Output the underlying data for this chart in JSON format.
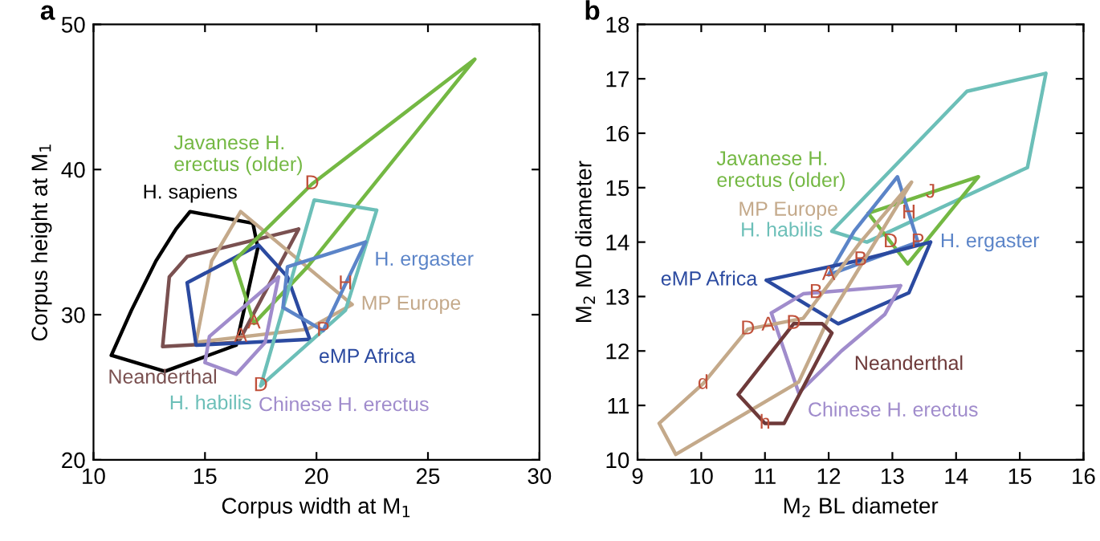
{
  "chart_data": [
    {
      "type": "line",
      "title": "a",
      "xlabel": "Corpus width at M$_{1}$",
      "ylabel": "Corpus height at M$_{1}$",
      "xlim": [
        10,
        30
      ],
      "ylim": [
        20,
        50
      ],
      "xticks": [
        10,
        15,
        20,
        25,
        30
      ],
      "yticks": [
        20,
        30,
        40,
        50
      ],
      "grid": false,
      "legend": false,
      "marker": "none",
      "line_style": "solid",
      "series": [
        {
          "name": "H. sapiens",
          "color": "#000000",
          "x": [
            10.8,
            11.7,
            12.8,
            13.7,
            14.33,
            17.15,
            17.37,
            null,
            10.8,
            13.2,
            16.4,
            17.37
          ],
          "values": [
            27.2,
            30.3,
            33.7,
            35.9,
            37.1,
            36.3,
            34.6,
            null,
            27.2,
            26.1,
            27.9,
            34.6
          ]
        },
        {
          "name": "Neanderthal",
          "color": "#7a5050",
          "x": [
            13.1,
            13.4,
            14.2,
            19.2,
            null,
            13.1,
            16.5,
            19.2
          ],
          "values": [
            27.8,
            32.6,
            34.0,
            35.9,
            null,
            27.8,
            28.1,
            35.9
          ]
        },
        {
          "name": "MP Europe",
          "color": "#c4a98a",
          "x": [
            14.6,
            15.3,
            16.6,
            21.6,
            null,
            14.6,
            19.6,
            21.6
          ],
          "values": [
            28.1,
            33.7,
            37.1,
            30.7,
            null,
            28.1,
            29.0,
            30.7
          ]
        },
        {
          "name": "eMP Africa",
          "color": "#2b4aa0",
          "x": [
            14.2,
            17.4,
            18.7,
            19.7,
            null,
            14.2,
            14.6,
            19.7
          ],
          "values": [
            32.2,
            34.8,
            32.6,
            28.3,
            null,
            32.2,
            27.9,
            28.3
          ]
        },
        {
          "name": "Javanese H. erectus (older)",
          "color": "#74b843",
          "x": [
            16.3,
            19.8,
            27.1,
            null,
            16.3,
            17.2,
            19.6,
            27.1
          ],
          "values": [
            33.7,
            39.0,
            47.6,
            null,
            33.7,
            29.4,
            33.3,
            47.6
          ]
        },
        {
          "name": "H. habilis",
          "color": "#6cbfb8",
          "x": [
            17.5,
            19.9,
            22.7,
            null,
            17.5,
            21.3,
            22.7
          ],
          "values": [
            25.1,
            37.9,
            37.2,
            null,
            25.1,
            30.3,
            37.2
          ]
        },
        {
          "name": "H. ergaster",
          "color": "#5b84c8",
          "x": [
            18.5,
            18.7,
            22.2,
            null,
            18.5,
            20.3,
            22.2
          ],
          "values": [
            30.5,
            33.3,
            35.0,
            null,
            30.5,
            28.9,
            35.0
          ]
        },
        {
          "name": "Chinese H. erectus",
          "color": "#a08ccc",
          "x": [
            15.0,
            15.2,
            18.3,
            null,
            15.0,
            16.4,
            17.7,
            18.3
          ],
          "values": [
            26.7,
            28.5,
            32.6,
            null,
            26.7,
            25.9,
            28.1,
            32.6
          ]
        }
      ],
      "annotations": [
        {
          "text": "D",
          "x": 19.8,
          "y": 39.0
        },
        {
          "text": "D",
          "x": 17.5,
          "y": 25.1
        },
        {
          "text": "H",
          "x": 21.3,
          "y": 32.1
        },
        {
          "text": "P",
          "x": 20.3,
          "y": 28.9
        },
        {
          "text": "A",
          "x": 17.2,
          "y": 29.4
        },
        {
          "text": "A",
          "x": 16.6,
          "y": 28.5
        }
      ]
    },
    {
      "type": "line",
      "title": "b",
      "xlabel": "M$_{2}$ BL diameter",
      "ylabel": "M$_{2}$ MD diameter",
      "xlim": [
        9,
        16
      ],
      "ylim": [
        10,
        18
      ],
      "xticks": [
        9,
        10,
        11,
        12,
        13,
        14,
        15,
        16
      ],
      "yticks": [
        10,
        11,
        12,
        13,
        14,
        15,
        16,
        17,
        18
      ],
      "grid": false,
      "legend": false,
      "marker": "none",
      "line_style": "solid",
      "series": [
        {
          "name": "H. habilis",
          "color": "#6cbfb8",
          "x": [
            12.05,
            14.17,
            15.41,
            null,
            12.05,
            12.6,
            15.12,
            15.41
          ],
          "values": [
            14.2,
            16.77,
            17.1,
            null,
            14.2,
            14.0,
            15.37,
            17.1
          ]
        },
        {
          "name": "Javanese H. erectus (older)",
          "color": "#74b843",
          "x": [
            12.62,
            14.35,
            null,
            12.62,
            13.24,
            14.35
          ],
          "values": [
            14.53,
            15.2,
            null,
            14.53,
            13.6,
            15.2
          ]
        },
        {
          "name": "H. ergaster",
          "color": "#5b84c8",
          "x": [
            12.0,
            12.4,
            13.08,
            13.4,
            null,
            12.0,
            13.4
          ],
          "values": [
            13.4,
            14.2,
            15.2,
            14.0,
            null,
            13.4,
            14.0
          ]
        },
        {
          "name": "eMP Africa",
          "color": "#2b4aa0",
          "x": [
            11.02,
            12.5,
            13.6,
            null,
            11.02,
            12.15,
            13.26,
            13.6
          ],
          "values": [
            13.3,
            13.67,
            14.0,
            null,
            13.3,
            12.5,
            13.07,
            14.0
          ]
        },
        {
          "name": "Chinese H. erectus",
          "color": "#a08ccc",
          "x": [
            11.1,
            11.6,
            13.13,
            null,
            11.1,
            11.53,
            12.2,
            12.88,
            13.13
          ],
          "values": [
            12.7,
            13.05,
            13.2,
            null,
            12.7,
            11.23,
            12.0,
            12.67,
            13.2
          ]
        },
        {
          "name": "MP Europe",
          "color": "#c4a98a",
          "x": [
            9.34,
            10.03,
            10.73,
            11.6,
            12.5,
            13.3,
            null,
            9.34,
            9.6,
            11.53,
            12.0,
            13.3
          ],
          "values": [
            10.67,
            11.4,
            12.4,
            12.6,
            14.0,
            15.1,
            null,
            10.67,
            10.1,
            11.43,
            12.6,
            15.1
          ]
        },
        {
          "name": "Neanderthal",
          "color": "#6e3a3a",
          "x": [
            10.58,
            11.45,
            11.9,
            12.05,
            null,
            10.58,
            11.0,
            11.3,
            12.05
          ],
          "values": [
            11.2,
            12.5,
            12.5,
            12.33,
            null,
            11.2,
            10.67,
            10.67,
            12.33
          ]
        }
      ],
      "annotations": [
        {
          "text": "J",
          "x": 13.6,
          "y": 14.91
        },
        {
          "text": "H",
          "x": 13.26,
          "y": 14.53
        },
        {
          "text": "P",
          "x": 13.4,
          "y": 14.0
        },
        {
          "text": "D",
          "x": 12.97,
          "y": 14.0
        },
        {
          "text": "B",
          "x": 12.5,
          "y": 13.67
        },
        {
          "text": "B",
          "x": 11.8,
          "y": 13.07
        },
        {
          "text": "A",
          "x": 12.0,
          "y": 13.4
        },
        {
          "text": "D",
          "x": 10.73,
          "y": 12.4
        },
        {
          "text": "A",
          "x": 11.05,
          "y": 12.47
        },
        {
          "text": "D",
          "x": 11.45,
          "y": 12.5
        },
        {
          "text": "d",
          "x": 10.03,
          "y": 11.4
        },
        {
          "text": "h",
          "x": 11.0,
          "y": 10.67
        }
      ]
    }
  ]
}
